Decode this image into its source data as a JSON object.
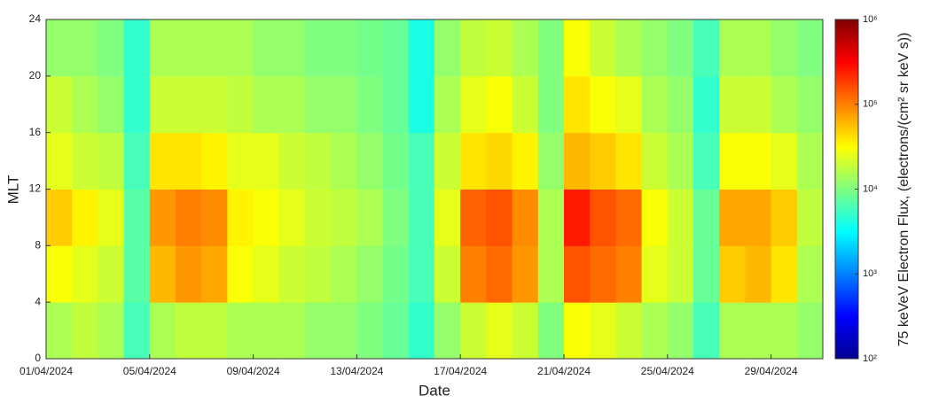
{
  "chart_data": {
    "type": "heatmap",
    "xlabel": "Date",
    "ylabel": "MLT",
    "colorbar_label": "75 keVeV Electron Flux, (electrons/(cm² sr keV s))",
    "x": [
      "01/04/2024",
      "02/04/2024",
      "03/04/2024",
      "04/04/2024",
      "05/04/2024",
      "06/04/2024",
      "07/04/2024",
      "08/04/2024",
      "09/04/2024",
      "10/04/2024",
      "11/04/2024",
      "12/04/2024",
      "13/04/2024",
      "14/04/2024",
      "15/04/2024",
      "16/04/2024",
      "17/04/2024",
      "18/04/2024",
      "19/04/2024",
      "20/04/2024",
      "21/04/2024",
      "22/04/2024",
      "23/04/2024",
      "24/04/2024",
      "25/04/2024",
      "26/04/2024",
      "27/04/2024",
      "28/04/2024",
      "29/04/2024",
      "30/04/2024"
    ],
    "xlim": [
      "01/04/2024",
      "01/05/2024"
    ],
    "xticks": [
      "01/04/2024",
      "05/04/2024",
      "09/04/2024",
      "13/04/2024",
      "17/04/2024",
      "21/04/2024",
      "25/04/2024",
      "29/04/2024"
    ],
    "mlt_bins": [
      0,
      4,
      8,
      12,
      16,
      20,
      24
    ],
    "ylim": [
      0,
      24
    ],
    "yticks": [
      0,
      4,
      8,
      12,
      16,
      20,
      24
    ],
    "values": [
      [
        15000,
        18000,
        15000,
        6000,
        15000,
        18000,
        18000,
        15000,
        15000,
        15000,
        12000,
        12000,
        10000,
        8000,
        5000,
        12000,
        20000,
        25000,
        20000,
        10000,
        30000,
        25000,
        20000,
        15000,
        12000,
        6000,
        15000,
        15000,
        15000,
        12000
      ],
      [
        30000,
        25000,
        20000,
        7000,
        60000,
        80000,
        70000,
        30000,
        25000,
        20000,
        18000,
        15000,
        12000,
        9000,
        6000,
        20000,
        100000,
        120000,
        80000,
        15000,
        150000,
        120000,
        100000,
        25000,
        20000,
        8000,
        50000,
        60000,
        40000,
        15000
      ],
      [
        50000,
        35000,
        25000,
        7000,
        80000,
        100000,
        90000,
        35000,
        30000,
        25000,
        20000,
        18000,
        15000,
        10000,
        6000,
        25000,
        130000,
        150000,
        90000,
        15000,
        250000,
        150000,
        120000,
        30000,
        20000,
        8000,
        70000,
        70000,
        50000,
        18000
      ],
      [
        25000,
        20000,
        18000,
        6000,
        40000,
        40000,
        35000,
        25000,
        25000,
        20000,
        18000,
        15000,
        12000,
        9000,
        6000,
        20000,
        40000,
        45000,
        35000,
        12000,
        60000,
        50000,
        40000,
        20000,
        15000,
        6000,
        30000,
        30000,
        25000,
        15000
      ],
      [
        20000,
        15000,
        12000,
        5000,
        20000,
        20000,
        20000,
        18000,
        15000,
        15000,
        12000,
        12000,
        10000,
        8000,
        4000,
        15000,
        25000,
        30000,
        20000,
        10000,
        40000,
        30000,
        25000,
        15000,
        12000,
        5000,
        20000,
        20000,
        15000,
        12000
      ],
      [
        12000,
        12000,
        10000,
        5000,
        15000,
        15000,
        15000,
        15000,
        12000,
        12000,
        10000,
        10000,
        9000,
        8000,
        4000,
        12000,
        18000,
        20000,
        15000,
        10000,
        30000,
        20000,
        15000,
        12000,
        10000,
        6000,
        15000,
        15000,
        12000,
        10000
      ]
    ],
    "colormap": "jet",
    "zscale": "log",
    "zlim": [
      100,
      1000000
    ],
    "zticks": [
      {
        "value": 100,
        "label": "10²"
      },
      {
        "value": 1000,
        "label": "10³"
      },
      {
        "value": 10000,
        "label": "10⁴"
      },
      {
        "value": 100000,
        "label": "10⁵"
      },
      {
        "value": 1000000,
        "label": "10⁶"
      }
    ]
  }
}
